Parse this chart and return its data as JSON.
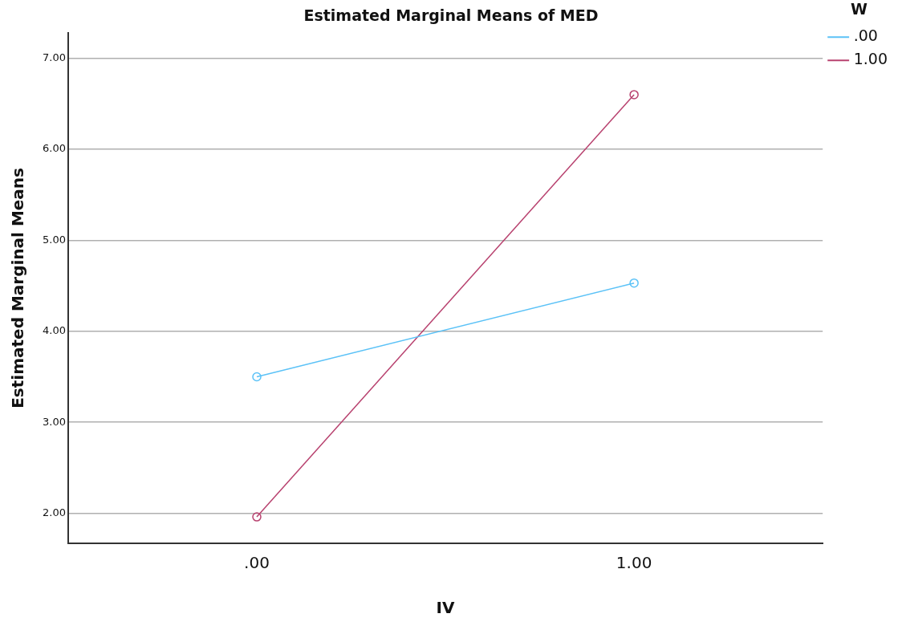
{
  "chart_data": {
    "type": "line",
    "title": "Estimated Marginal Means of MED",
    "xlabel": "IV",
    "ylabel": "Estimated Marginal Means",
    "legend_title": "W",
    "categories": [
      ".00",
      "1.00"
    ],
    "series": [
      {
        "name": ".00",
        "color": "#5bc2f7",
        "values": [
          3.5,
          4.53
        ]
      },
      {
        "name": "1.00",
        "color": "#b8426f",
        "values": [
          1.96,
          6.6
        ]
      }
    ],
    "ylim": [
      1.67,
      7.28
    ],
    "yticks": [
      {
        "value": 2,
        "label": "2.00"
      },
      {
        "value": 3,
        "label": "3.00"
      },
      {
        "value": 4,
        "label": "4.00"
      },
      {
        "value": 5,
        "label": "5.00"
      },
      {
        "value": 6,
        "label": "6.00"
      },
      {
        "value": 7,
        "label": "7.00"
      }
    ],
    "grid": "y",
    "legend": "top right",
    "marker": "circle",
    "line_style": "solid"
  }
}
